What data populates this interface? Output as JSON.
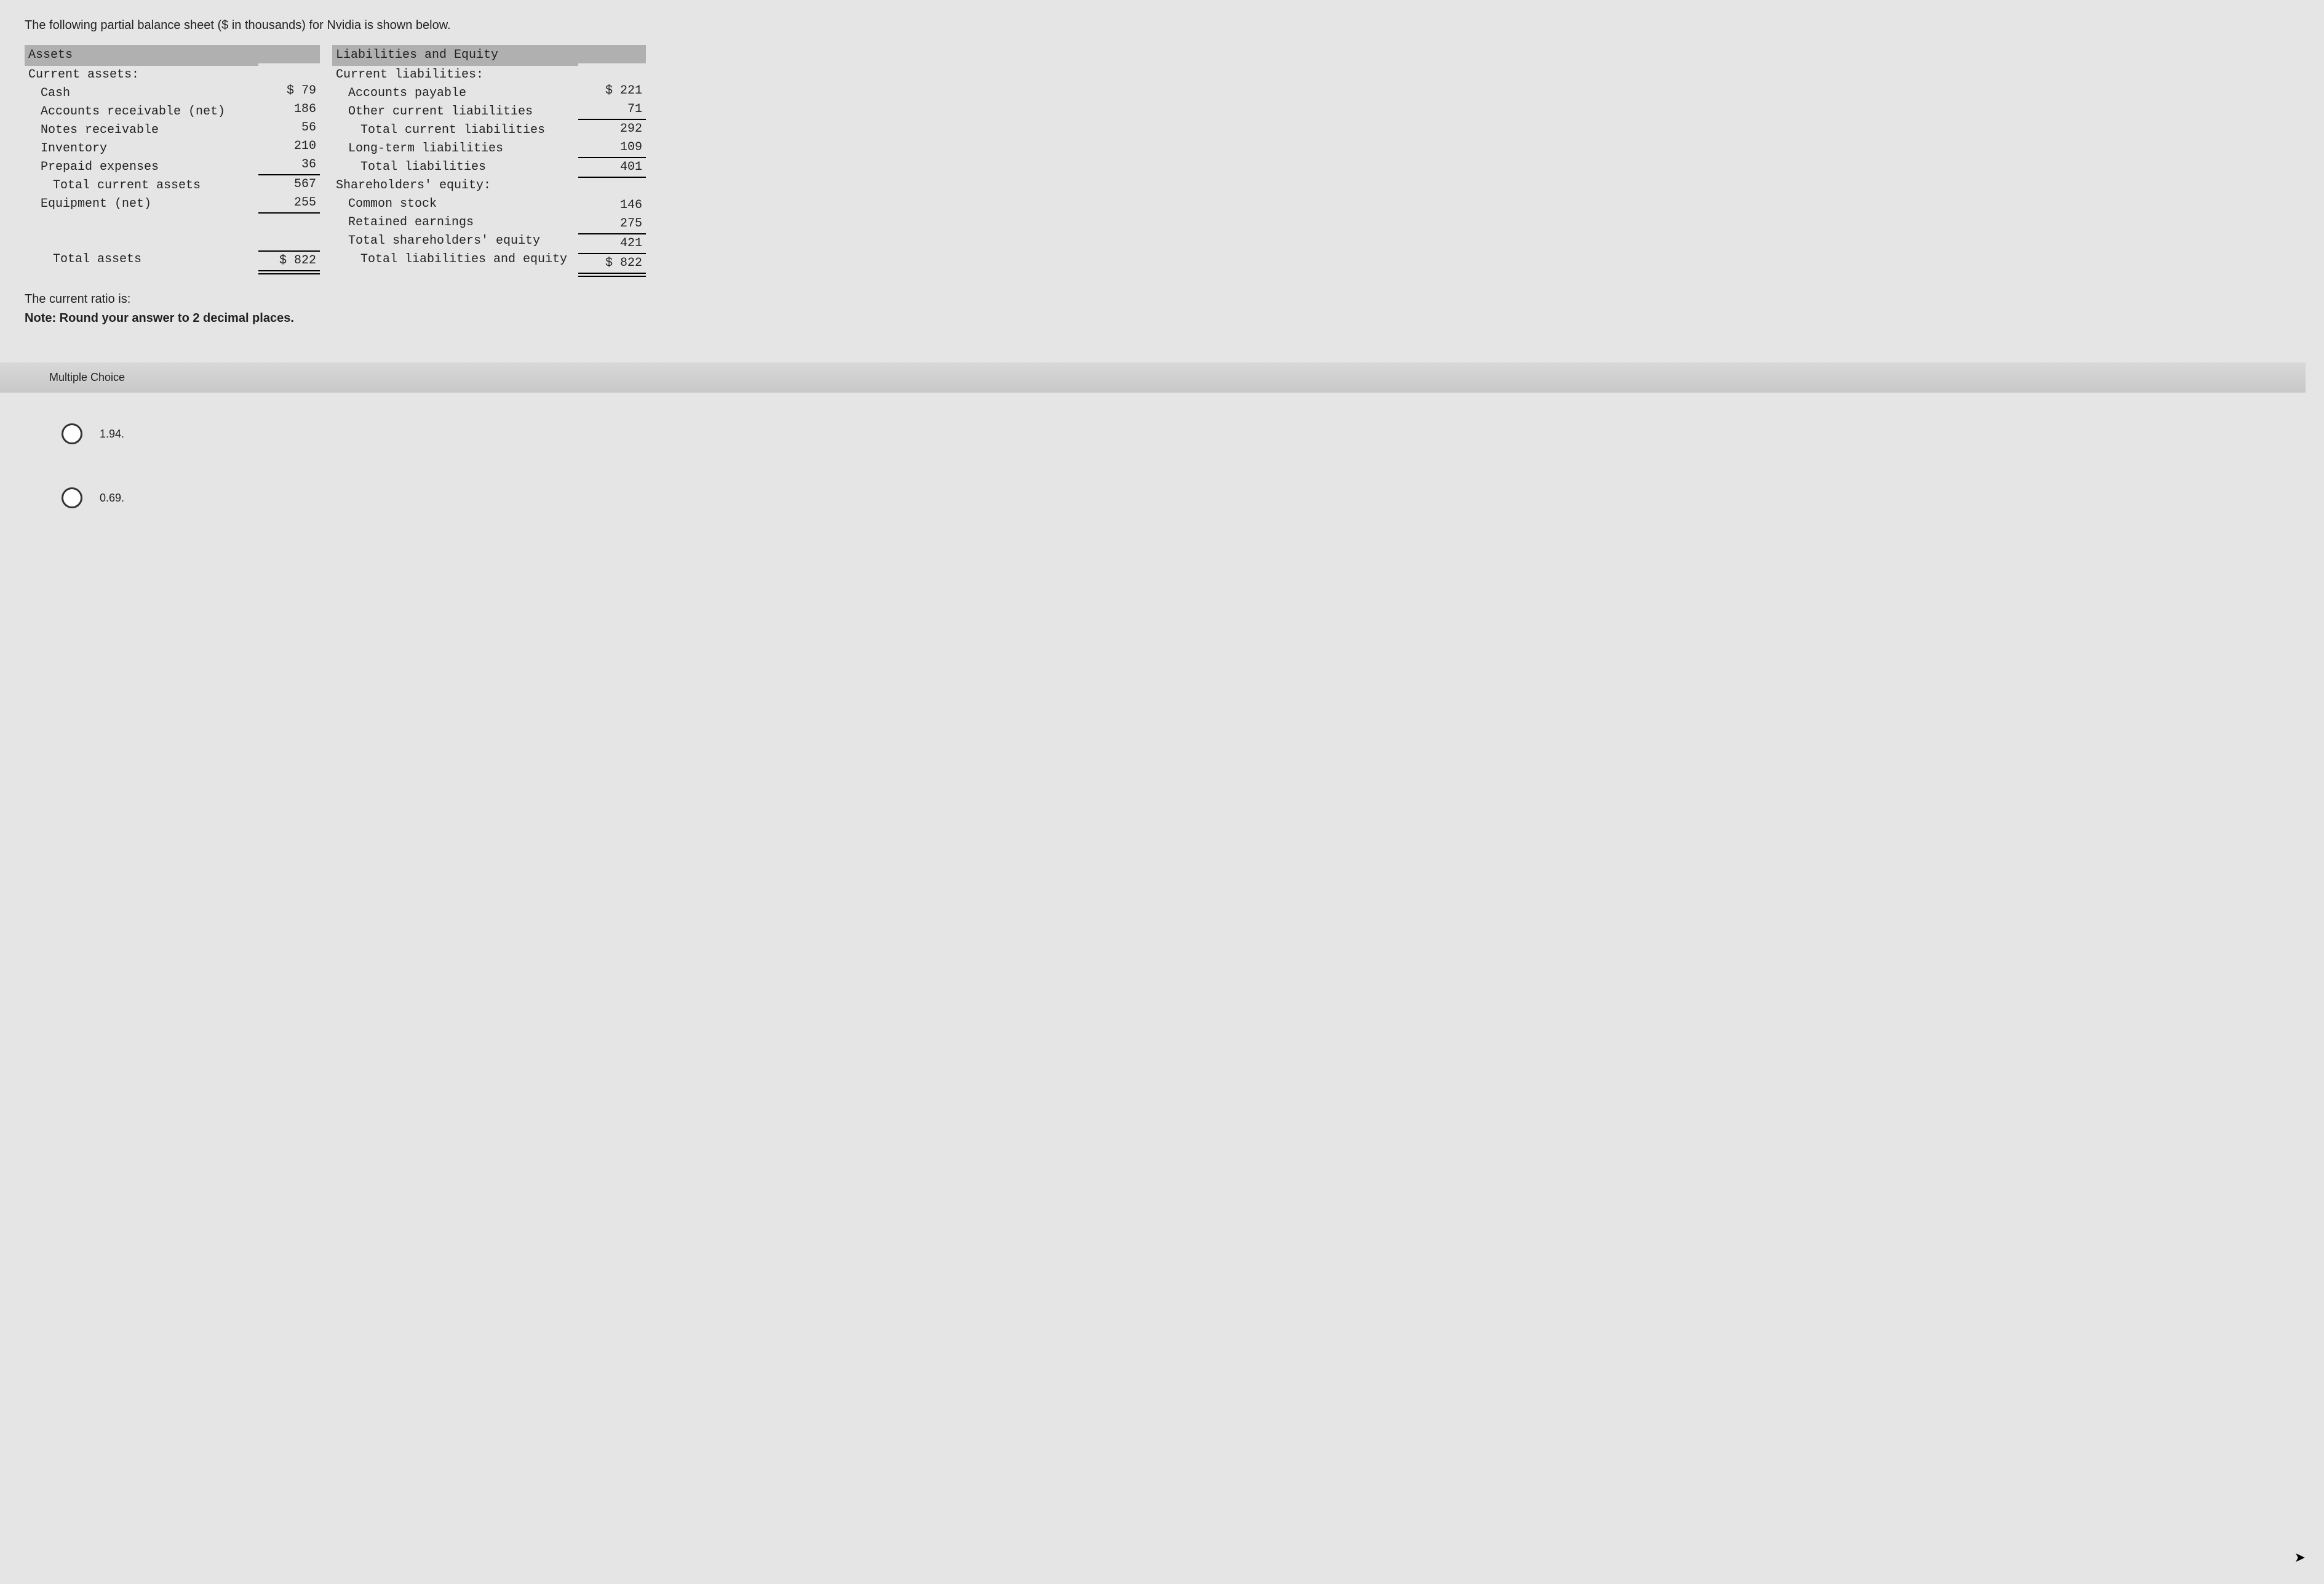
{
  "intro": "The following partial balance sheet ($ in thousands) for Nvidia is shown below.",
  "balance_sheet": {
    "assets": {
      "header": "Assets",
      "sub": "Current assets:",
      "rows": [
        {
          "label": "Cash",
          "value": "$ 79"
        },
        {
          "label": "Accounts receivable (net)",
          "value": "186"
        },
        {
          "label": "Notes receivable",
          "value": "56"
        },
        {
          "label": "Inventory",
          "value": "210"
        },
        {
          "label": "Prepaid expenses",
          "value": "36"
        }
      ],
      "total_current": {
        "label": "Total current assets",
        "value": "567"
      },
      "equipment": {
        "label": "Equipment (net)",
        "value": "255"
      },
      "total": {
        "label": "Total assets",
        "value": "$ 822"
      }
    },
    "liab_equity": {
      "header": "Liabilities and Equity",
      "sub": "Current liabilities:",
      "rows": [
        {
          "label": "Accounts payable",
          "value": "$ 221"
        },
        {
          "label": "Other current liabilities",
          "value": "71"
        }
      ],
      "total_current_liab": {
        "label": "Total current liabilities",
        "value": "292"
      },
      "longterm": {
        "label": "Long-term liabilities",
        "value": "109"
      },
      "total_liab": {
        "label": "Total liabilities",
        "value": "401"
      },
      "equity_header": "Shareholders' equity:",
      "common_stock": {
        "label": "Common stock",
        "value": "146"
      },
      "retained": {
        "label": "Retained earnings",
        "value": "275"
      },
      "total_equity": {
        "label": "Total shareholders' equity",
        "value": "421"
      },
      "total": {
        "label": "Total liabilities and equity",
        "value": "$ 822"
      }
    }
  },
  "question": "The current ratio is:",
  "note": "Note: Round your answer to 2 decimal places.",
  "mc_label": "Multiple Choice",
  "choices": [
    "1.94.",
    "0.69."
  ],
  "colors": {
    "page_bg": "#e5e5e5",
    "header_bg": "#b0b0b0",
    "text": "#222222",
    "rule": "#000000"
  }
}
